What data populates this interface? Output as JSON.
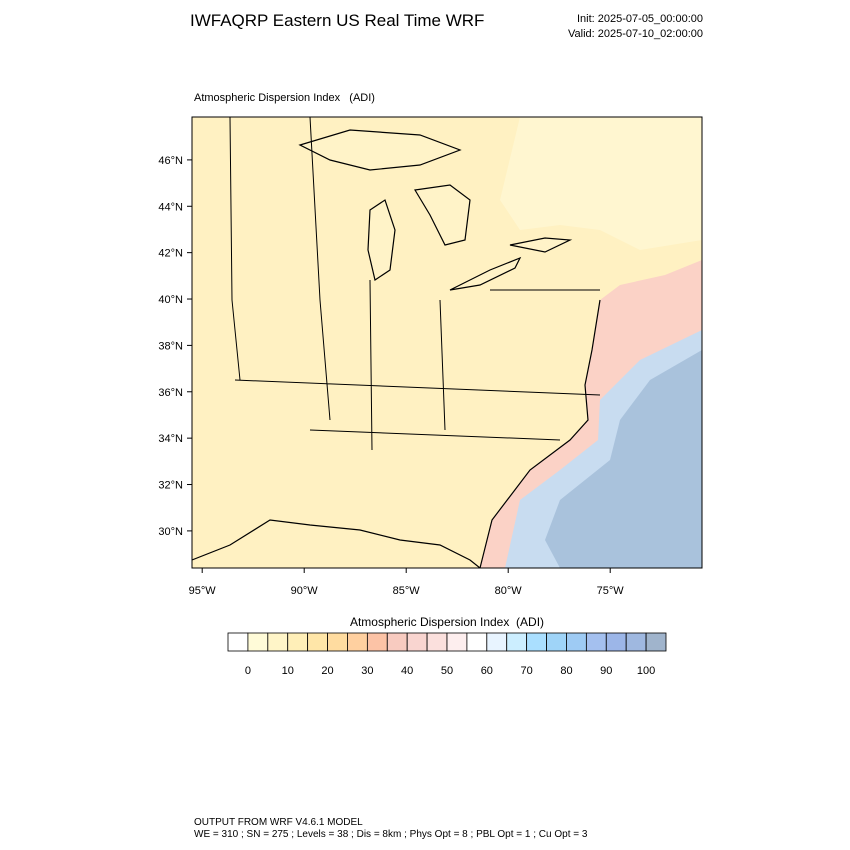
{
  "header": {
    "title": "IWFAQRP Eastern US Real Time WRF",
    "init": "Init: 2025-07-05_00:00:00",
    "valid": "Valid: 2025-07-10_02:00:00"
  },
  "chart_data": {
    "type": "map",
    "subtitle": "Atmospheric Dispersion Index   (ADI)",
    "xlim": [
      -95.5,
      -70.5
    ],
    "ylim": [
      28.4,
      47.85
    ],
    "xticks": [
      {
        "value": -95,
        "label": "95°W"
      },
      {
        "value": -90,
        "label": "90°W"
      },
      {
        "value": -85,
        "label": "85°W"
      },
      {
        "value": -80,
        "label": "80°W"
      },
      {
        "value": -75,
        "label": "75°W"
      }
    ],
    "yticks": [
      {
        "value": 30,
        "label": "30°N"
      },
      {
        "value": 32,
        "label": "32°N"
      },
      {
        "value": 34,
        "label": "34°N"
      },
      {
        "value": 36,
        "label": "36°N"
      },
      {
        "value": 38,
        "label": "38°N"
      },
      {
        "value": 40,
        "label": "40°N"
      },
      {
        "value": 42,
        "label": "42°N"
      },
      {
        "value": 44,
        "label": "44°N"
      },
      {
        "value": 46,
        "label": "46°N"
      }
    ],
    "colorbar": {
      "title": "Atmospheric Dispersion Index  (ADI)",
      "range": [
        -5,
        105
      ],
      "ticks": [
        0,
        10,
        20,
        30,
        40,
        50,
        60,
        70,
        80,
        90,
        100
      ],
      "colors": [
        "#ffffff",
        "#fffbd8",
        "#fff5c8",
        "#ffefb8",
        "#ffe6a8",
        "#ffdca0",
        "#ffd0a0",
        "#fcc3a6",
        "#f8cbc0",
        "#f9d5d0",
        "#fbe0dd",
        "#fdeeee",
        "#ffffff",
        "#e8f4ff",
        "#cceeff",
        "#aadfff",
        "#9fd4f8",
        "#9ecbf4",
        "#a4c0ef",
        "#9cb6e8",
        "#9fb8e0",
        "#a0b4cc"
      ]
    }
  },
  "footer": {
    "line1": "OUTPUT FROM WRF V4.6.1 MODEL",
    "line2": "WE = 310 ; SN = 275 ; Levels = 38 ; Dis = 8km ; Phys Opt = 8 ; PBL Opt = 1 ; Cu Opt = 3"
  }
}
